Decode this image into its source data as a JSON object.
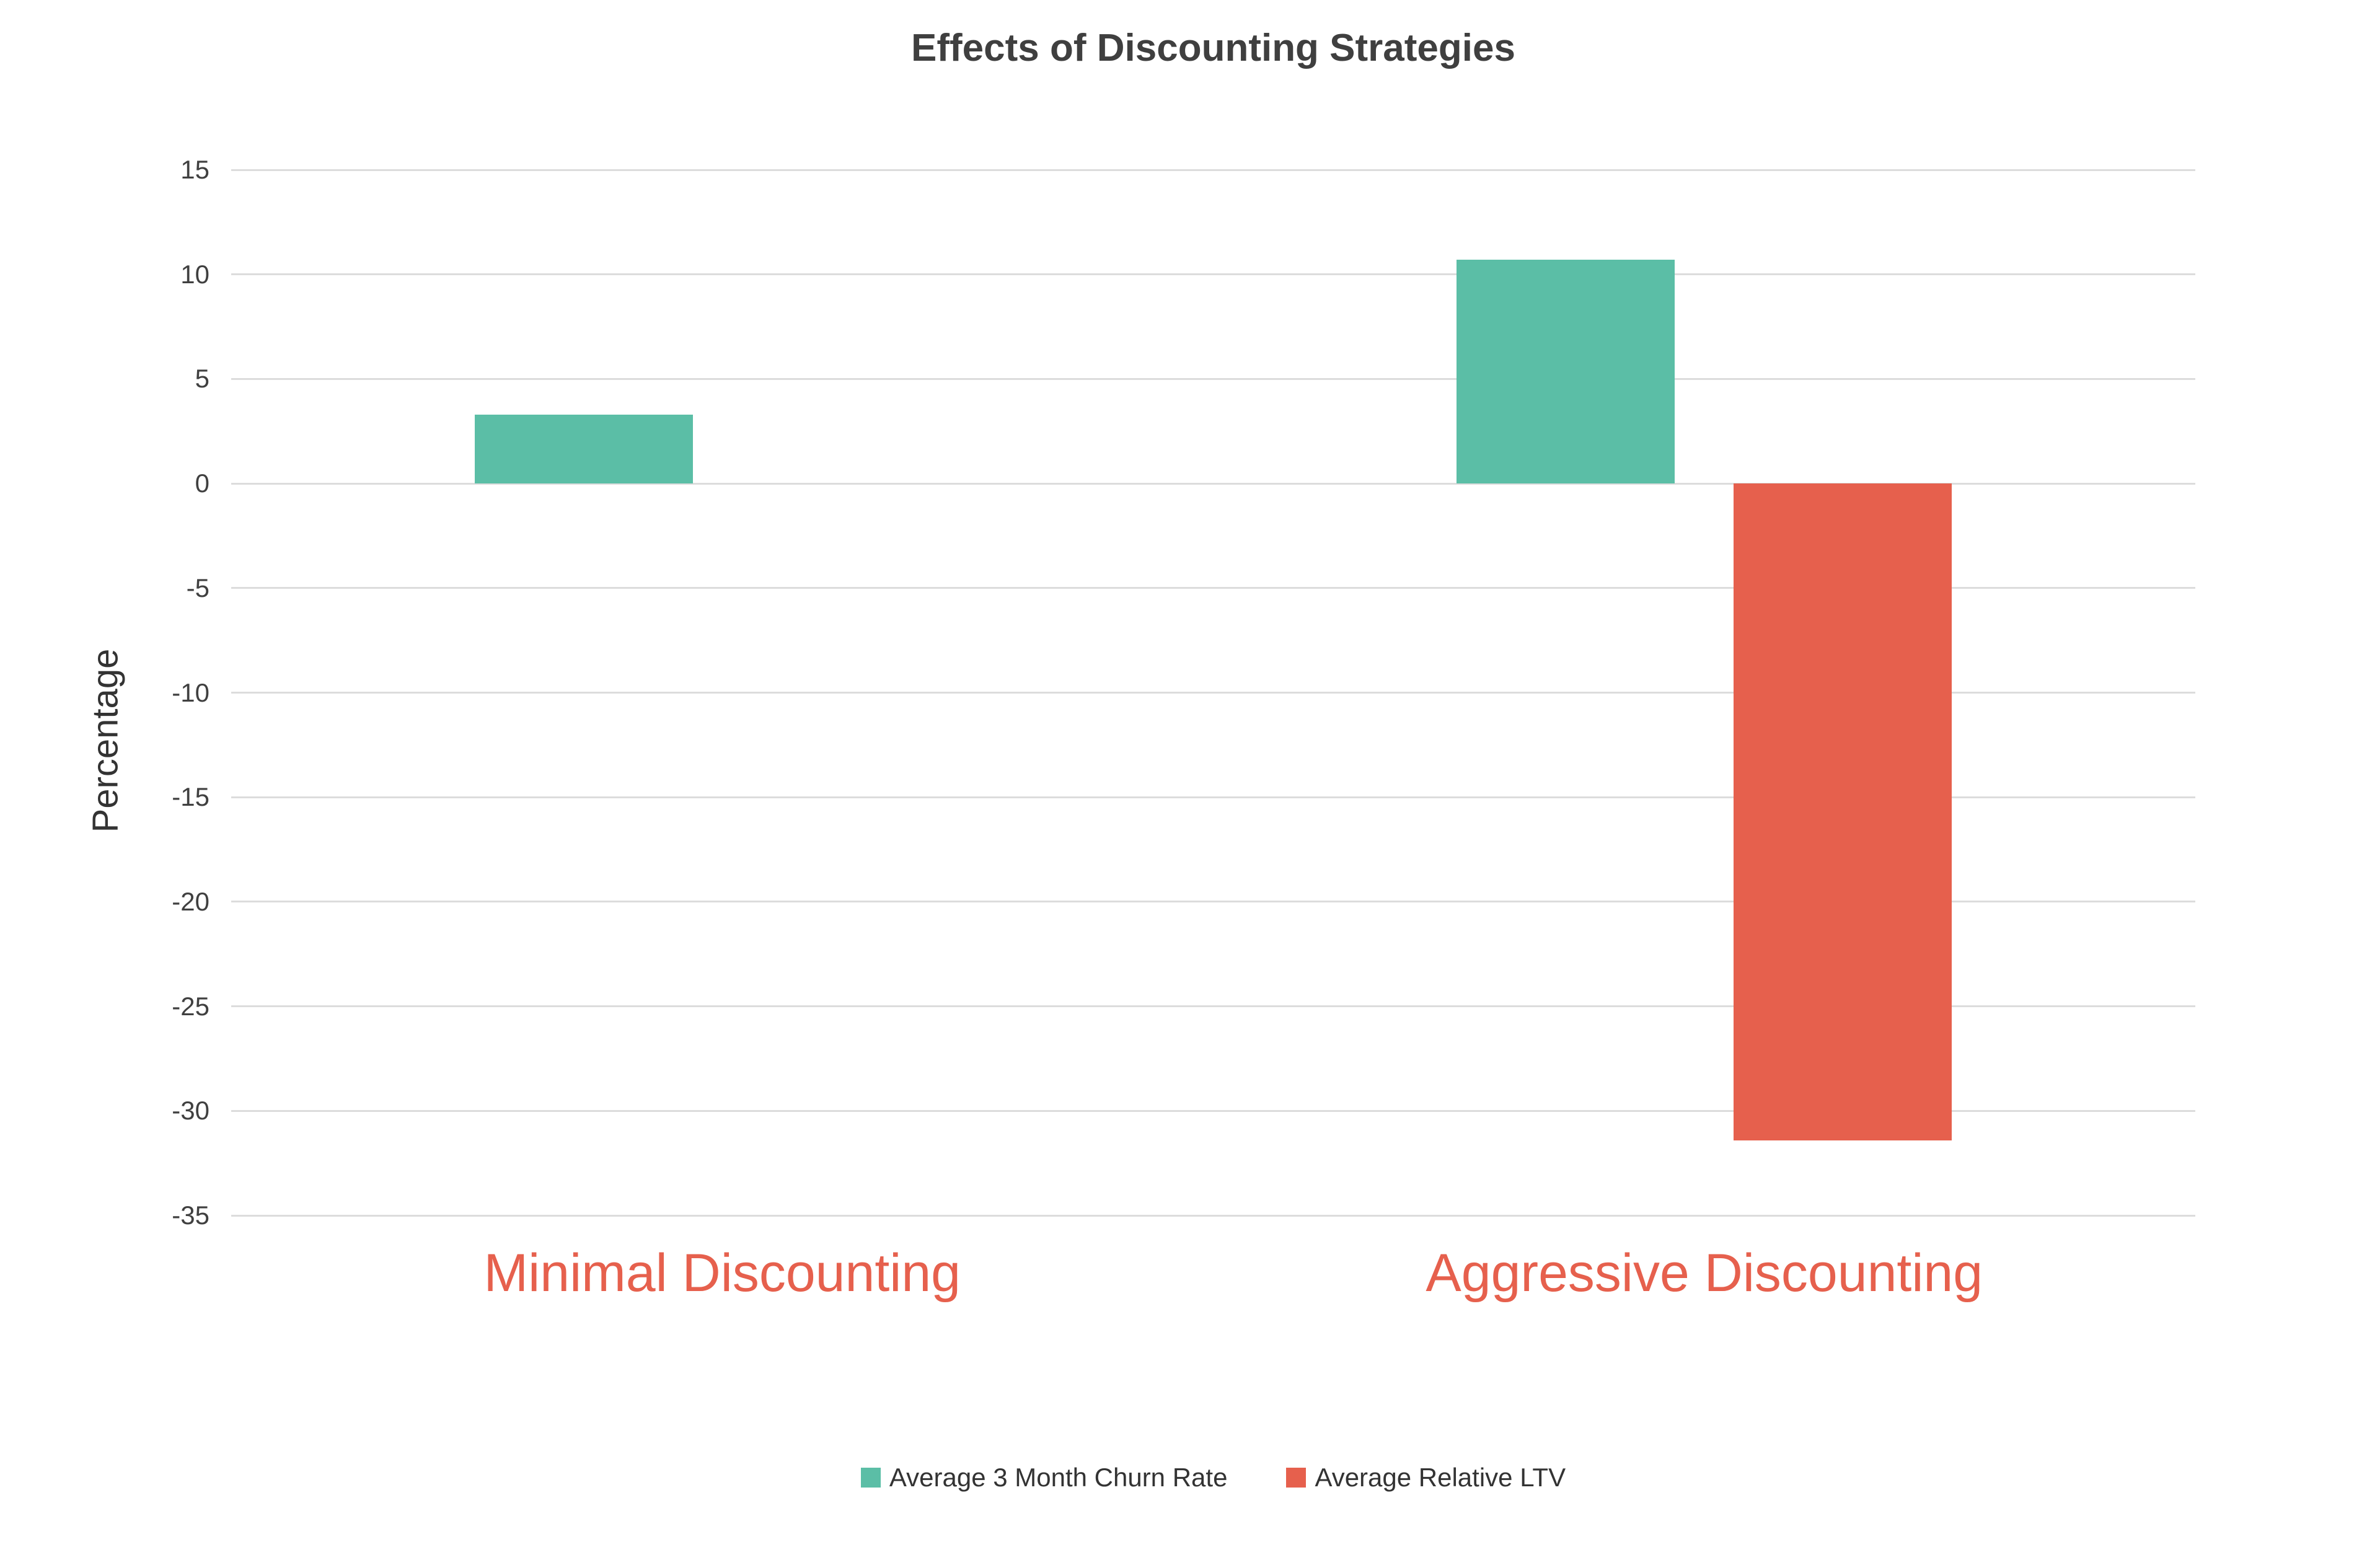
{
  "chart_data": {
    "type": "bar",
    "title": "Effects of Discounting Strategies",
    "categories": [
      "Minimal Discounting",
      "Aggressive Discounting"
    ],
    "series": [
      {
        "name": "Average 3 Month Churn Rate",
        "color": "#5bbea6",
        "values": [
          3.3,
          10.7
        ]
      },
      {
        "name": "Average Relative LTV",
        "color": "#e6604d",
        "values": [
          0,
          -31.4
        ]
      }
    ],
    "xlabel": "",
    "ylabel": "Percentage",
    "ylim": [
      -35,
      15
    ],
    "ytick_step": 5,
    "grid": true,
    "grid_color": "#dcdcdc",
    "legend_position": "bottom",
    "category_label_color": "#e6604d",
    "title_color": "#3f3f3f"
  }
}
